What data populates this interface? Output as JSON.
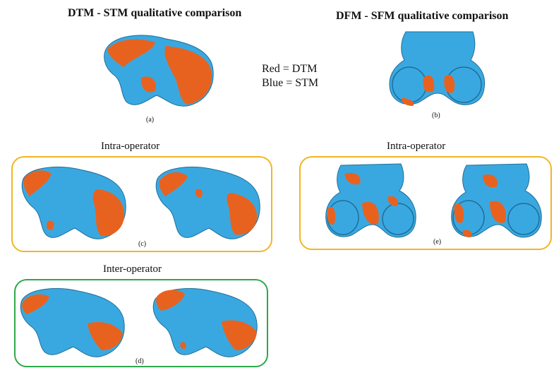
{
  "titles": {
    "left": "DTM - STM qualitative comparison",
    "right": "DFM - SFM qualitative comparison"
  },
  "legend": {
    "red": "Red = DTM",
    "blue": "Blue = STM"
  },
  "captions": {
    "a": "(a)",
    "b": "(b)",
    "c": "(c)",
    "d": "(d)",
    "e": "(e)"
  },
  "groups": {
    "intra_left": "Intra-operator",
    "intra_right": "Intra-operator",
    "inter": "Inter-operator"
  },
  "colors": {
    "dtm": "#e8621f",
    "stm": "#3aa8e0",
    "intra_frame": "#f0b623",
    "inter_frame": "#2ca84a"
  }
}
